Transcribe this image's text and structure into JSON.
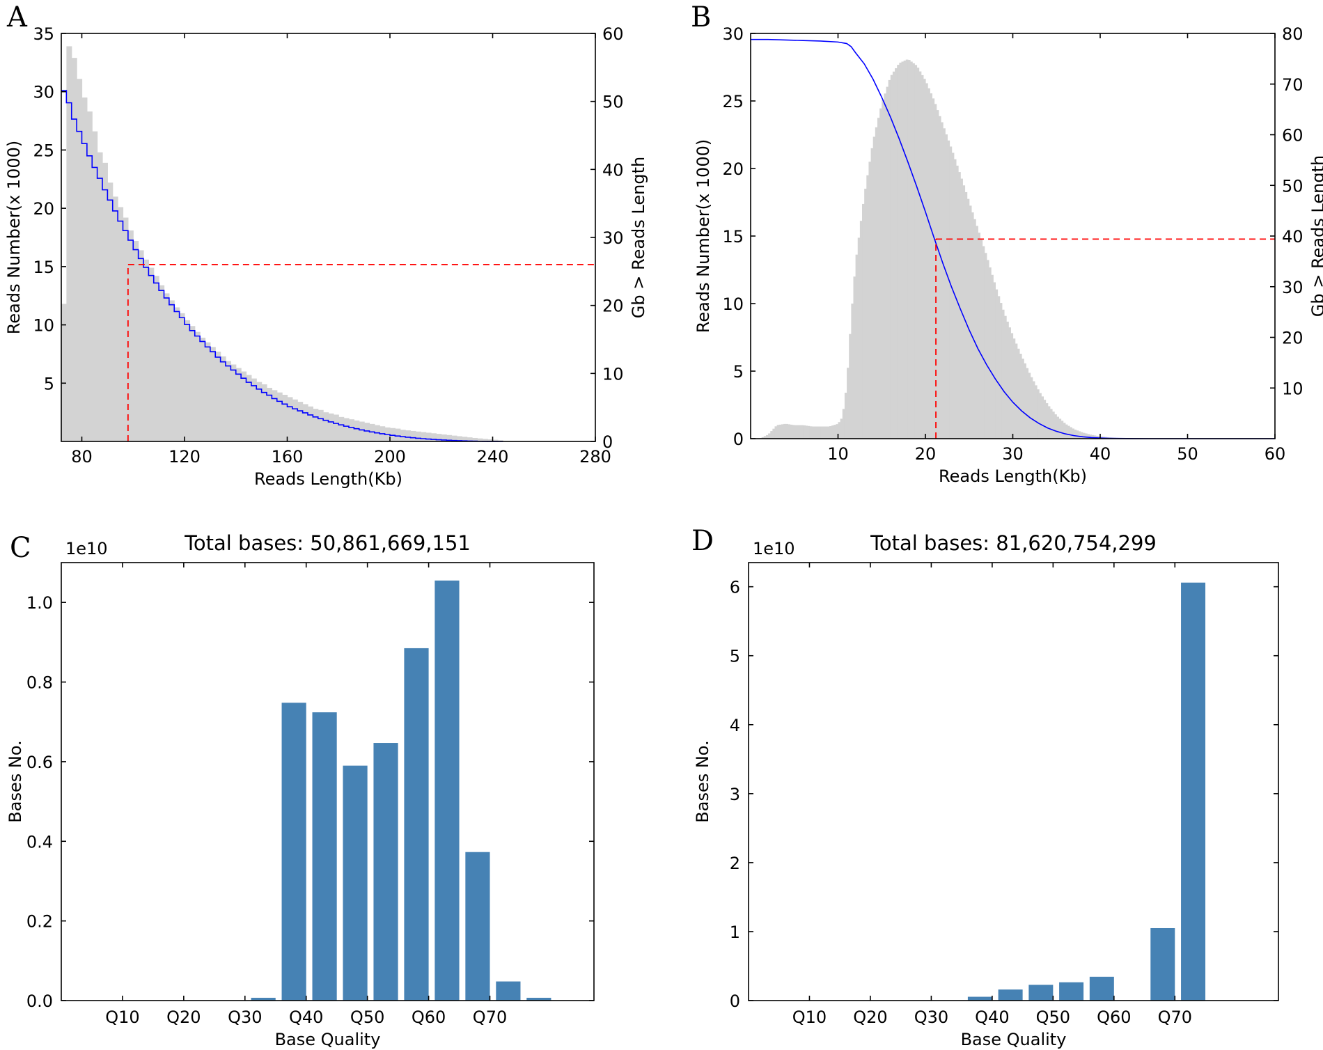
{
  "figure": {
    "panels": [
      "A",
      "B",
      "C",
      "D"
    ]
  },
  "chart_data": [
    {
      "id": "A",
      "type": "bar",
      "panel_label": "A",
      "xlabel": "Reads Length(Kb)",
      "ylabel_left": "Reads Number(x 1000)",
      "ylabel_right": "Gb > Reads Length",
      "xlim": [
        72,
        280
      ],
      "ylim_left": [
        0,
        35
      ],
      "ylim_right": [
        0,
        60
      ],
      "xticks": [
        80,
        120,
        160,
        200,
        240,
        280
      ],
      "xtick_labels": [
        "80",
        "120",
        "160",
        "200",
        "240",
        "280"
      ],
      "yticks_left": [
        5,
        10,
        15,
        20,
        25,
        30,
        35
      ],
      "ytick_labels_left": [
        "5",
        "10",
        "15",
        "20",
        "25",
        "30",
        "35"
      ],
      "yticks_right": [
        0,
        10,
        20,
        30,
        40,
        50,
        60
      ],
      "ytick_labels_right": [
        "0",
        "10",
        "20",
        "30",
        "40",
        "50",
        "60"
      ],
      "histogram": {
        "name": "Reads number",
        "color": "#d3d3d3",
        "bin_width": 2,
        "bin_start": 72,
        "values": [
          11.8,
          33.9,
          32.9,
          31.1,
          29.5,
          28.3,
          26.6,
          24.8,
          23.9,
          22.2,
          21.0,
          20.1,
          19.2,
          18.1,
          17.2,
          16.4,
          15.6,
          14.9,
          14.2,
          13.4,
          12.7,
          12.1,
          11.5,
          11.0,
          10.4,
          9.9,
          9.4,
          8.9,
          8.5,
          8.1,
          7.7,
          7.3,
          6.9,
          6.6,
          6.3,
          6.0,
          5.7,
          5.4,
          5.1,
          4.9,
          4.6,
          4.4,
          4.2,
          4.0,
          3.8,
          3.6,
          3.4,
          3.2,
          3.0,
          2.8,
          2.7,
          2.5,
          2.4,
          2.3,
          2.1,
          2.0,
          1.9,
          1.8,
          1.7,
          1.6,
          1.5,
          1.4,
          1.3,
          1.2,
          1.15,
          1.1,
          1.0,
          0.95,
          0.9,
          0.85,
          0.8,
          0.75,
          0.7,
          0.65,
          0.6,
          0.55,
          0.5,
          0.45,
          0.4,
          0.35,
          0.3,
          0.26,
          0.22,
          0.18,
          0.14,
          0.1
        ]
      },
      "cumulative": {
        "name": "Gb > Reads Length",
        "color": "#0000ff",
        "style": "step",
        "x_start": 72,
        "step": 2,
        "values": [
          51.6,
          49.8,
          47.4,
          45.6,
          43.8,
          42.0,
          40.3,
          38.7,
          37.0,
          35.5,
          33.9,
          32.4,
          31.0,
          29.6,
          28.2,
          26.9,
          25.6,
          24.4,
          23.3,
          22.2,
          21.1,
          20.1,
          19.1,
          18.2,
          17.2,
          16.3,
          15.5,
          14.7,
          13.9,
          13.2,
          12.4,
          11.7,
          11.1,
          10.5,
          9.9,
          9.3,
          8.7,
          8.2,
          7.7,
          7.2,
          6.8,
          6.3,
          5.9,
          5.5,
          5.1,
          4.8,
          4.5,
          4.2,
          3.9,
          3.6,
          3.35,
          3.1,
          2.87,
          2.65,
          2.44,
          2.24,
          2.05,
          1.87,
          1.7,
          1.54,
          1.4,
          1.26,
          1.13,
          1.01,
          0.9,
          0.8,
          0.7,
          0.62,
          0.54,
          0.47,
          0.41,
          0.35,
          0.3,
          0.25,
          0.21,
          0.17,
          0.14,
          0.11,
          0.08,
          0.06,
          0.04,
          0.025,
          0.015,
          0.008,
          0.003,
          0.0
        ]
      },
      "n50_marker": {
        "color": "#ff0000",
        "x": 98,
        "y_right": 26,
        "x_end": 280
      }
    },
    {
      "id": "B",
      "type": "bar",
      "panel_label": "B",
      "xlabel": "Reads Length(Kb)",
      "ylabel_left": "Reads Number(x 1000)",
      "ylabel_right": "Gb > Reads Length",
      "xlim": [
        0,
        60
      ],
      "ylim_left": [
        0,
        30
      ],
      "ylim_right": [
        0,
        80
      ],
      "xticks": [
        10,
        20,
        30,
        40,
        50,
        60
      ],
      "xtick_labels": [
        "10",
        "20",
        "30",
        "40",
        "50",
        "60"
      ],
      "yticks_left": [
        0,
        5,
        10,
        15,
        20,
        25,
        30
      ],
      "ytick_labels_left": [
        "0",
        "5",
        "10",
        "15",
        "20",
        "25",
        "30"
      ],
      "yticks_right": [
        10,
        20,
        30,
        40,
        50,
        60,
        70,
        80
      ],
      "ytick_labels_right": [
        "10",
        "20",
        "30",
        "40",
        "50",
        "60",
        "70",
        "80"
      ],
      "histogram": {
        "name": "Reads number",
        "color": "#d3d3d3",
        "x": [
          1,
          2,
          3,
          4,
          5,
          6,
          7,
          8,
          9,
          10,
          10.5,
          11,
          11.5,
          12,
          13,
          14,
          15,
          16,
          17,
          18,
          19,
          20,
          21,
          22,
          23,
          24,
          25,
          26,
          27,
          28,
          29,
          30,
          31,
          32,
          33,
          34,
          35,
          36,
          37,
          38,
          39,
          40,
          41,
          42,
          43,
          44
        ],
        "values": [
          0.0,
          0.3,
          1.0,
          1.1,
          1.0,
          1.0,
          0.9,
          0.9,
          0.9,
          1.1,
          1.6,
          4.0,
          9.0,
          13.0,
          18.0,
          22.0,
          24.8,
          26.8,
          27.8,
          28.1,
          27.6,
          26.5,
          25.0,
          23.2,
          21.4,
          19.5,
          17.5,
          15.5,
          13.5,
          11.3,
          9.3,
          7.6,
          6.1,
          4.7,
          3.5,
          2.5,
          1.7,
          1.1,
          0.7,
          0.45,
          0.28,
          0.17,
          0.1,
          0.05,
          0.02,
          0.0
        ]
      },
      "cumulative": {
        "name": "Gb > Reads Length",
        "color": "#0000ff",
        "style": "line",
        "x": [
          0,
          2,
          4,
          6,
          8,
          10,
          11,
          11.5,
          12,
          13,
          14,
          15,
          16,
          17,
          18,
          19,
          20,
          21,
          22,
          23,
          24,
          25,
          26,
          27,
          28,
          29,
          30,
          31,
          32,
          33,
          34,
          35,
          36,
          37,
          38,
          39,
          40,
          41,
          42,
          43,
          44,
          46,
          50,
          60
        ],
        "values": [
          78.8,
          78.8,
          78.7,
          78.6,
          78.5,
          78.3,
          78.0,
          77.4,
          76.2,
          74.0,
          71.0,
          67.4,
          63.5,
          59.2,
          54.6,
          49.8,
          44.8,
          39.6,
          34.6,
          29.9,
          25.6,
          21.5,
          17.8,
          14.6,
          11.8,
          9.3,
          7.2,
          5.5,
          4.1,
          3.0,
          2.1,
          1.45,
          0.95,
          0.6,
          0.37,
          0.22,
          0.13,
          0.07,
          0.04,
          0.02,
          0.01,
          0.0,
          0.0,
          0.0
        ]
      },
      "n50_marker": {
        "color": "#ff0000",
        "x": 21.2,
        "y_right": 39.4,
        "x_end": 60
      }
    },
    {
      "id": "C",
      "type": "bar",
      "panel_label": "C",
      "title": "Total bases: 50,861,669,151",
      "xlabel": "Base Quality",
      "ylabel": "Bases No.",
      "offset_text": "1e10",
      "xlim": [
        0,
        87
      ],
      "ylim": [
        0,
        1.1
      ],
      "yticks": [
        0.0,
        0.2,
        0.4,
        0.6,
        0.8,
        1.0
      ],
      "ytick_labels": [
        "0.0",
        "0.2",
        "0.4",
        "0.6",
        "0.8",
        "1.0"
      ],
      "xticks": [
        10,
        20,
        30,
        40,
        50,
        60,
        70
      ],
      "xtick_labels": [
        "Q10",
        "Q20",
        "Q30",
        "Q40",
        "Q50",
        "Q60",
        "Q70"
      ],
      "bar_color": "#4682b4",
      "bar_width": 4,
      "bars_x": [
        33,
        38,
        43,
        48,
        53,
        58,
        63,
        68,
        73,
        78
      ],
      "values": [
        0.007,
        0.748,
        0.724,
        0.59,
        0.647,
        0.885,
        1.055,
        0.373,
        0.048,
        0.007
      ]
    },
    {
      "id": "D",
      "type": "bar",
      "panel_label": "D",
      "title": "Total bases: 81,620,754,299",
      "xlabel": "Base Quality",
      "ylabel": "Bases No.",
      "offset_text": "1e10",
      "xlim": [
        0,
        87
      ],
      "ylim": [
        0,
        6.35
      ],
      "yticks": [
        0,
        1,
        2,
        3,
        4,
        5,
        6
      ],
      "ytick_labels": [
        "0",
        "1",
        "2",
        "3",
        "4",
        "5",
        "6"
      ],
      "xticks": [
        10,
        20,
        30,
        40,
        50,
        60,
        70
      ],
      "xtick_labels": [
        "Q10",
        "Q20",
        "Q30",
        "Q40",
        "Q50",
        "Q60",
        "Q70"
      ],
      "bar_color": "#4682b4",
      "bar_width": 4,
      "bars_x": [
        38,
        43,
        48,
        53,
        58,
        68,
        73
      ],
      "values": [
        0.055,
        0.16,
        0.228,
        0.265,
        0.345,
        1.05,
        6.06
      ]
    }
  ]
}
